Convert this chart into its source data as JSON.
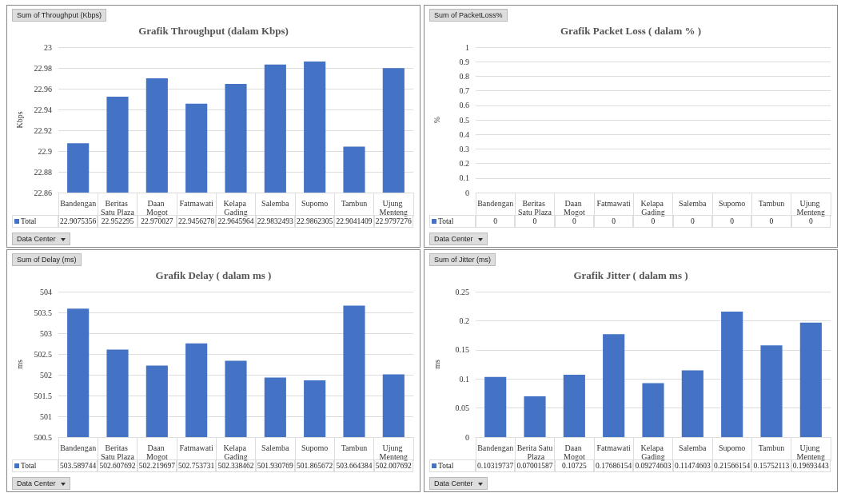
{
  "chart_data": [
    {
      "type": "bar",
      "title": "Grafik Throughput (dalam Kbps)",
      "ylabel": "Kbps",
      "annotations": [
        "Sum of Throughput (Kbps)",
        "Data Center"
      ],
      "categories": [
        "Bandengan",
        "Beritas Satu Plaza",
        "Daan Mogot",
        "Fatmawati",
        "Kelapa Gading",
        "Salemba",
        "Supomo",
        "Tambun",
        "Ujung Menteng"
      ],
      "series": [
        {
          "name": "Total",
          "color": "#4472c4",
          "values": [
            22.9075356,
            22.952295,
            22.970027,
            22.9456278,
            22.9645964,
            22.9832493,
            22.9862305,
            22.9041409,
            22.9797276
          ]
        }
      ],
      "ylim": [
        22.86,
        23
      ],
      "yticks": [
        22.86,
        22.88,
        22.9,
        22.92,
        22.94,
        22.96,
        22.98,
        23
      ],
      "grid": "y",
      "data_labels": true,
      "legend": "bottom left"
    },
    {
      "type": "bar",
      "title": "Grafik Packet Loss ( dalam % )",
      "ylabel": "%",
      "annotations": [
        "Sum of PacketLoss%",
        "Data Center"
      ],
      "categories": [
        "Bandengan",
        "Beritas Satu Plaza",
        "Daan Mogot",
        "Fatmawati",
        "Kelapa Gading",
        "Salemba",
        "Supomo",
        "Tambun",
        "Ujung Menteng"
      ],
      "series": [
        {
          "name": "Total",
          "color": "#4472c4",
          "values": [
            0,
            0,
            0,
            0,
            0,
            0,
            0,
            0,
            0
          ]
        }
      ],
      "ylim": [
        0,
        1
      ],
      "yticks": [
        0,
        0.1,
        0.2,
        0.3,
        0.4,
        0.5,
        0.6,
        0.7,
        0.8,
        0.9,
        1
      ],
      "grid": "y",
      "data_labels": true,
      "legend": "bottom left"
    },
    {
      "type": "bar",
      "title": "Grafik Delay ( dalam ms )",
      "ylabel": "ms",
      "annotations": [
        "Sum of Delay (ms)",
        "Data Center"
      ],
      "categories": [
        "Bandengan",
        "Beritas Satu Plaza",
        "Daan Mogot",
        "Fatmawati",
        "Kelapa Gading",
        "Salemba",
        "Supomo",
        "Tambun",
        "Ujung Menteng"
      ],
      "series": [
        {
          "name": "Total",
          "color": "#4472c4",
          "values": [
            503.589744,
            502.607692,
            502.219697,
            502.753731,
            502.338462,
            501.930769,
            501.865672,
            503.664384,
            502.007692
          ]
        }
      ],
      "ylim": [
        500.5,
        504
      ],
      "yticks": [
        500.5,
        501,
        501.5,
        502,
        502.5,
        503,
        503.5,
        504
      ],
      "grid": "y",
      "data_labels": true,
      "legend": "bottom left"
    },
    {
      "type": "bar",
      "title": "Grafik Jitter ( dalam ms )",
      "ylabel": "ms",
      "annotations": [
        "Sum of Jitter (ms)",
        "Data Center"
      ],
      "categories": [
        "Bandengan",
        "Berita Satu Plaza",
        "Daan Mogot",
        "Fatmawati",
        "Kelapa Gading",
        "Salemba",
        "Supomo",
        "Tambun",
        "Ujung Menteng"
      ],
      "series": [
        {
          "name": "Total",
          "color": "#4472c4",
          "values": [
            0.10319737,
            0.07001587,
            0.10725,
            0.17686154,
            0.09274603,
            0.11474603,
            0.21566154,
            0.15752113,
            0.19693443
          ]
        }
      ],
      "ylim": [
        0,
        0.25
      ],
      "yticks": [
        0,
        0.05,
        0.1,
        0.15,
        0.2,
        0.25
      ],
      "grid": "y",
      "data_labels": true,
      "legend": "bottom left"
    }
  ]
}
